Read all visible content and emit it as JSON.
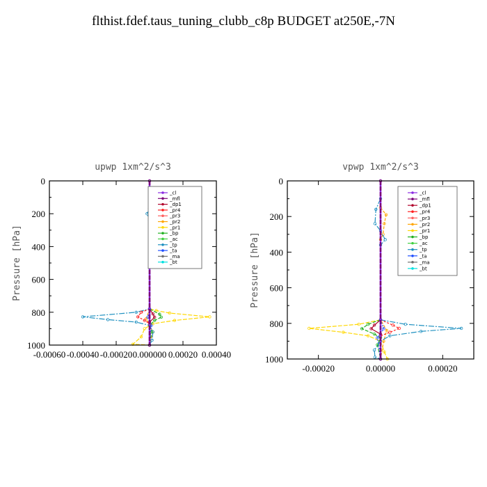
{
  "title": "flthist.fdef.taus_tuning_clubb_c8p  BUDGET at250E,-7N",
  "legend_entries": [
    {
      "name": "_cl",
      "color": "#8a2be2"
    },
    {
      "name": "_mfl",
      "color": "#7a0078"
    },
    {
      "name": "_dp1",
      "color": "#b0002a"
    },
    {
      "name": "_pr4",
      "color": "#ff2020"
    },
    {
      "name": "_pr3",
      "color": "#ff6060"
    },
    {
      "name": "_pr2",
      "color": "#ffa500"
    },
    {
      "name": "_pr1",
      "color": "#ffd700"
    },
    {
      "name": "_bp",
      "color": "#20b020"
    },
    {
      "name": "_ac",
      "color": "#40d040"
    },
    {
      "name": "_tp",
      "color": "#1e90c0"
    },
    {
      "name": "_ta",
      "color": "#2050ff"
    },
    {
      "name": "_ma",
      "color": "#707070"
    },
    {
      "name": "_bt",
      "color": "#00e0e0"
    }
  ],
  "chart_data": [
    {
      "type": "line",
      "title": "upwp   1xm^2/s^3",
      "ylabel": "Pressure [hPa]",
      "xlim": [
        -0.0006,
        0.0004
      ],
      "ylim": [
        1000,
        0
      ],
      "xticks": [
        -0.0006,
        -0.0004,
        -0.0002,
        0.0,
        0.0002,
        0.0004
      ],
      "xtick_labels": [
        "-0.00060",
        "-0.00040",
        "-0.00020",
        "0.000000",
        "0.00020",
        "0.00040"
      ],
      "yticks": [
        0,
        200,
        400,
        600,
        800,
        1000
      ],
      "legend": "top-right",
      "series": [
        {
          "name": "_pr1",
          "color": "#ffd700",
          "dash": "6,2",
          "points": [
            [
              0,
              780
            ],
            [
              4e-05,
              790
            ],
            [
              0.00012,
              805
            ],
            [
              0.00036,
              828
            ],
            [
              0.00015,
              850
            ],
            [
              2e-05,
              870
            ],
            [
              -3e-05,
              900
            ],
            [
              -5e-05,
              950
            ],
            [
              -0.0001,
              995
            ],
            [
              0,
              1000
            ]
          ]
        },
        {
          "name": "_pr2",
          "color": "#ffa500",
          "dash": "4,2",
          "points": [
            [
              0,
              170
            ],
            [
              8e-06,
              200
            ],
            [
              0,
              230
            ],
            [
              0,
              780
            ],
            [
              -2e-05,
              840
            ],
            [
              0,
              880
            ],
            [
              2e-05,
              920
            ],
            [
              0,
              1000
            ]
          ]
        },
        {
          "name": "_tp",
          "color": "#1e90c0",
          "dash": "8,2,2,2",
          "points": [
            [
              0,
              170
            ],
            [
              -1.5e-05,
              200
            ],
            [
              0,
              240
            ],
            [
              0,
              780
            ],
            [
              -8e-05,
              800
            ],
            [
              -0.0004,
              828
            ],
            [
              -0.00025,
              845
            ],
            [
              -8e-05,
              860
            ],
            [
              0,
              880
            ],
            [
              2e-05,
              920
            ],
            [
              1.5e-05,
              970
            ],
            [
              0,
              1000
            ]
          ]
        },
        {
          "name": "_bp",
          "color": "#20b020",
          "dash": "5,2",
          "points": [
            [
              0,
              780
            ],
            [
              6e-05,
              812
            ],
            [
              7e-05,
              830
            ],
            [
              3e-05,
              850
            ],
            [
              0,
              880
            ],
            [
              1.2e-05,
              920
            ],
            [
              0,
              1000
            ]
          ]
        },
        {
          "name": "_pr4",
          "color": "#ff2020",
          "dash": "3,2",
          "points": [
            [
              0,
              780
            ],
            [
              -5e-05,
              800
            ],
            [
              -7e-05,
              828
            ],
            [
              -3e-05,
              850
            ],
            [
              0,
              870
            ],
            [
              0,
              1000
            ]
          ]
        },
        {
          "name": "_dp1",
          "color": "#b0002a",
          "dash": "",
          "points": [
            [
              0,
              780
            ],
            [
              2e-05,
              810
            ],
            [
              3e-05,
              830
            ],
            [
              0,
              860
            ],
            [
              0,
              1000
            ]
          ]
        },
        {
          "name": "_ta",
          "color": "#2050ff",
          "dash": "2,2",
          "points": [
            [
              0,
              780
            ],
            [
              -1e-05,
              830
            ],
            [
              1e-05,
              880
            ],
            [
              0,
              1000
            ]
          ]
        },
        {
          "name": "_cl",
          "color": "#8a2be2",
          "dash": "",
          "points": [
            [
              0,
              0
            ],
            [
              0,
              1000
            ]
          ]
        },
        {
          "name": "_mfl",
          "color": "#7a0078",
          "dash": "6,2",
          "points": [
            [
              0,
              0
            ],
            [
              0,
              1000
            ]
          ]
        }
      ]
    },
    {
      "type": "line",
      "title": "vpwp   1xm^2/s^3",
      "ylabel": "Pressure [hPa]",
      "xlim": [
        -0.0003,
        0.0003
      ],
      "ylim": [
        1000,
        0
      ],
      "xticks": [
        -0.0002,
        0.0,
        0.0002
      ],
      "xtick_labels": [
        "-0.00020",
        "0.00000",
        "0.00020"
      ],
      "yticks": [
        0,
        200,
        400,
        600,
        800,
        1000
      ],
      "legend": "top-right",
      "series": [
        {
          "name": "_pr1",
          "color": "#ffd700",
          "dash": "6,2",
          "points": [
            [
              0,
              780
            ],
            [
              -7e-05,
              805
            ],
            [
              -0.00023,
              828
            ],
            [
              -0.00012,
              850
            ],
            [
              -4e-05,
              870
            ],
            [
              0,
              900
            ],
            [
              1.2e-05,
              960
            ],
            [
              2.2e-05,
              1000
            ]
          ]
        },
        {
          "name": "_pr2",
          "color": "#ffa500",
          "dash": "4,2",
          "points": [
            [
              0,
              150
            ],
            [
              1.8e-05,
              190
            ],
            [
              1.2e-05,
              240
            ],
            [
              8e-06,
              300
            ],
            [
              0,
              330
            ],
            [
              0,
              780
            ],
            [
              2e-05,
              840
            ],
            [
              1e-05,
              900
            ],
            [
              0,
              1000
            ]
          ]
        },
        {
          "name": "_tp",
          "color": "#1e90c0",
          "dash": "8,2,2,2",
          "points": [
            [
              0,
              100
            ],
            [
              -1.5e-05,
              160
            ],
            [
              -1.8e-05,
              240
            ],
            [
              0,
              280
            ],
            [
              1.5e-05,
              330
            ],
            [
              0,
              360
            ],
            [
              0,
              780
            ],
            [
              8e-05,
              805
            ],
            [
              0.00026,
              828
            ],
            [
              0.00013,
              845
            ],
            [
              3e-05,
              870
            ],
            [
              0,
              900
            ],
            [
              -2e-05,
              950
            ],
            [
              -1.8e-05,
              990
            ],
            [
              0,
              1000
            ]
          ]
        },
        {
          "name": "_bp",
          "color": "#20b020",
          "dash": "5,2",
          "points": [
            [
              0,
              780
            ],
            [
              -4e-05,
              805
            ],
            [
              -6e-05,
              830
            ],
            [
              -2e-05,
              860
            ],
            [
              0,
              880
            ],
            [
              -1e-05,
              920
            ],
            [
              0,
              1000
            ]
          ]
        },
        {
          "name": "_pr4",
          "color": "#ff2020",
          "dash": "3,2",
          "points": [
            [
              0,
              780
            ],
            [
              4e-05,
              810
            ],
            [
              6e-05,
              828
            ],
            [
              3e-05,
              850
            ],
            [
              0,
              870
            ],
            [
              0,
              1000
            ]
          ]
        },
        {
          "name": "_dp1",
          "color": "#b0002a",
          "dash": "",
          "points": [
            [
              0,
              780
            ],
            [
              -2e-05,
              810
            ],
            [
              -3e-05,
              830
            ],
            [
              0,
              860
            ],
            [
              0,
              1000
            ]
          ]
        },
        {
          "name": "_ta",
          "color": "#2050ff",
          "dash": "2,2",
          "points": [
            [
              0,
              780
            ],
            [
              1e-05,
              830
            ],
            [
              -1e-05,
              880
            ],
            [
              0,
              1000
            ]
          ]
        },
        {
          "name": "_cl",
          "color": "#8a2be2",
          "dash": "",
          "points": [
            [
              0,
              0
            ],
            [
              0,
              1000
            ]
          ]
        },
        {
          "name": "_mfl",
          "color": "#7a0078",
          "dash": "6,2",
          "points": [
            [
              0,
              0
            ],
            [
              0,
              1000
            ]
          ]
        }
      ]
    }
  ]
}
